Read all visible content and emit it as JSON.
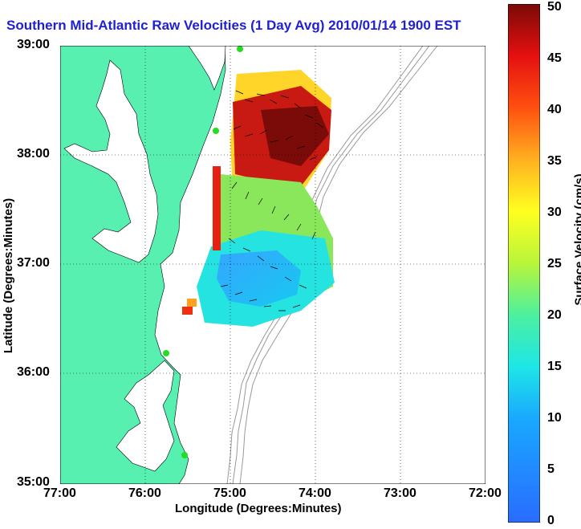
{
  "title": "Southern Mid-Atlantic Raw Velocities (1 Day Avg) 2010/01/14 1900 EST",
  "axes": {
    "xlabel": "Longitude (Degrees:Minutes)",
    "ylabel": "Latitude (Degrees:Minutes)",
    "x_ticks": [
      "77:00",
      "76:00",
      "75:00",
      "74:00",
      "73:00",
      "72:00"
    ],
    "y_ticks": [
      "39:00",
      "38:00",
      "37:00",
      "36:00",
      "35:00"
    ]
  },
  "colorbar": {
    "label": "Surface Velocity (cm/s)",
    "ticks": [
      "0",
      "5",
      "10",
      "15",
      "20",
      "25",
      "30",
      "35",
      "40",
      "45",
      "50"
    ],
    "range": [
      0,
      50
    ]
  },
  "colors": {
    "land": "#57f0b0",
    "ocean": "#ffffff",
    "title": "#1f1fd6",
    "bathymetry": "#999999",
    "stations": "#22dd22"
  }
}
